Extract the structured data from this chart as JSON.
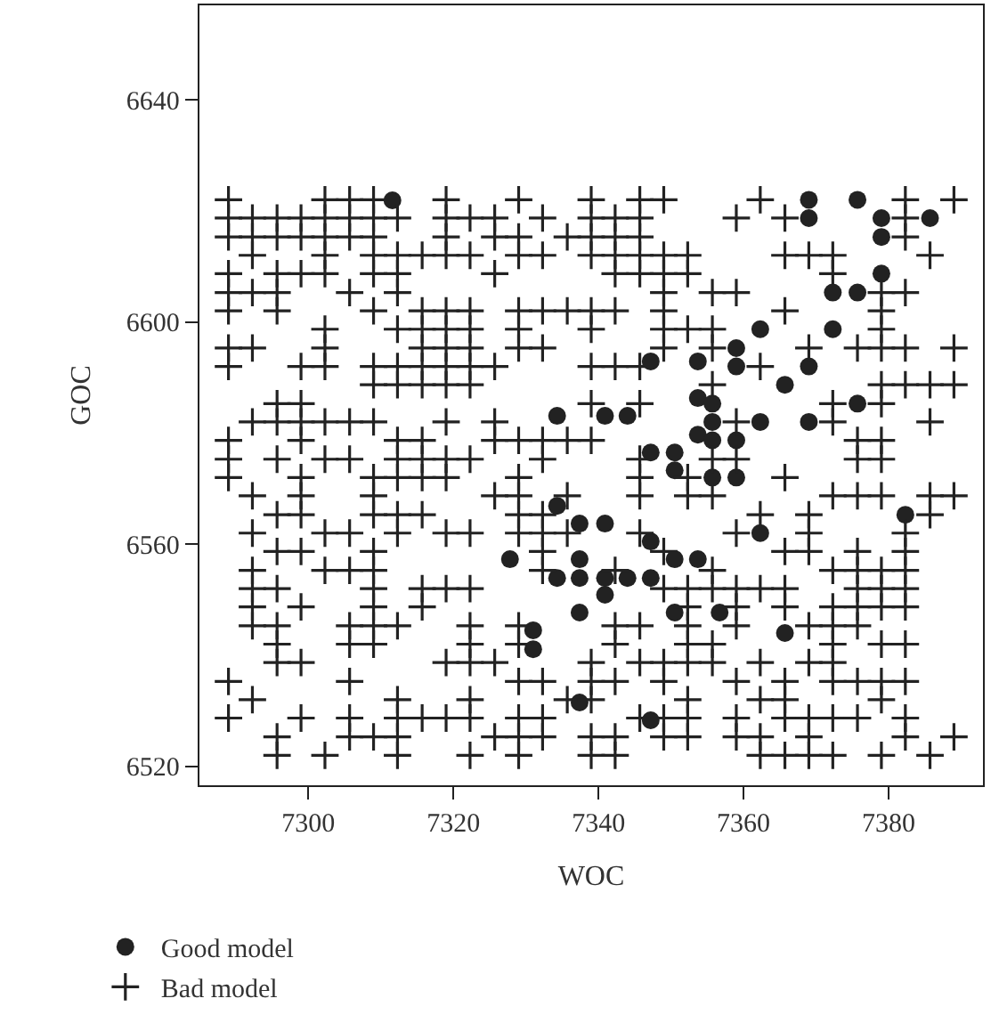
{
  "chart_data": {
    "type": "scatter",
    "xlabel": "WOC",
    "ylabel": "GOC",
    "xlim": [
      7285,
      7393
    ],
    "ylim": [
      6516.6,
      6657
    ],
    "xticks": [
      7300,
      7320,
      7340,
      7360,
      7380
    ],
    "yticks": [
      6520,
      6560,
      6600,
      6640
    ],
    "legend": "bottom left",
    "series": [
      {
        "name": "Good model",
        "color": "#222222",
        "marker": "circle",
        "x": [
          7311.6,
          7347.2,
          7353.7,
          7353.7,
          7334.3,
          7340.9,
          7344.0,
          7353.7,
          7347.2,
          7350.5,
          7350.5,
          7334.3,
          7337.4,
          7340.9,
          7347.2,
          7327.8,
          7337.4,
          7350.5,
          7353.7,
          7334.3,
          7337.4,
          7340.9,
          7344.0,
          7347.2,
          7340.9,
          7337.4,
          7350.5,
          7356.7,
          7331.0,
          7331.0,
          7337.4,
          7347.2,
          7369,
          7375.7,
          7369,
          7379,
          7385.7,
          7379,
          7379,
          7372.3,
          7375.7,
          7362.3,
          7372.3,
          7359,
          7359,
          7369,
          7365.7,
          7355.7,
          7375.7,
          7355.7,
          7362.3,
          7369,
          7355.7,
          7359,
          7355.7,
          7359,
          7382.3,
          7362.3,
          7365.7
        ],
        "values": [
          6621.9,
          6592.9,
          6592.9,
          6586.3,
          6583.1,
          6583.1,
          6583.1,
          6579.7,
          6576.5,
          6576.5,
          6573.3,
          6566.9,
          6563.7,
          6563.7,
          6560.5,
          6557.3,
          6557.3,
          6557.3,
          6557.3,
          6553.9,
          6553.9,
          6553.9,
          6553.9,
          6553.9,
          6550.9,
          6547.7,
          6547.7,
          6547.7,
          6544.5,
          6541.1,
          6531.5,
          6528.3,
          6622,
          6622,
          6618.7,
          6618.7,
          6618.7,
          6615.3,
          6608.7,
          6605.3,
          6605.3,
          6598.7,
          6598.7,
          6595.3,
          6592,
          6592,
          6588.7,
          6585.3,
          6585.3,
          6582,
          6582,
          6582,
          6578.7,
          6578.7,
          6572,
          6572,
          6565.3,
          6562,
          6544
        ]
      },
      {
        "name": "Bad model",
        "color": "#222222",
        "marker": "cross",
        "x": [
          7289,
          7302.3,
          7305.7,
          7309,
          7319,
          7329,
          7339,
          7345.7,
          7349,
          7289,
          7292.3,
          7295.7,
          7299,
          7302.3,
          7305.7,
          7309,
          7312.3,
          7319,
          7322.3,
          7325.7,
          7332.3,
          7339,
          7342.3,
          7345.7,
          7289,
          7292.3,
          7295.7,
          7299,
          7302.3,
          7305.7,
          7309,
          7319,
          7325.7,
          7329,
          7335.7,
          7339,
          7342.3,
          7345.7,
          7292.3,
          7302.3,
          7309,
          7312.3,
          7315.7,
          7319,
          7322.3,
          7329,
          7332.3,
          7339,
          7342.3,
          7345.7,
          7349,
          7352.3,
          7289,
          7295.7,
          7299,
          7302.3,
          7309,
          7312.3,
          7325.7,
          7342.3,
          7345.7,
          7349,
          7289,
          7292.3,
          7295.7,
          7305.7,
          7312.3,
          7349,
          7355.7,
          7289,
          7295.7,
          7309,
          7315.7,
          7319,
          7322.3,
          7329,
          7332.3,
          7335.7,
          7339,
          7342.3,
          7349,
          7302.3,
          7312.3,
          7315.7,
          7319,
          7322.3,
          7329,
          7339,
          7349,
          7352.3,
          7355.7,
          7289,
          7292.3,
          7302.3,
          7315.7,
          7319,
          7322.3,
          7329,
          7332.3,
          7349,
          7289,
          7299,
          7302.3,
          7309,
          7312.3,
          7315.7,
          7319,
          7322.3,
          7325.7,
          7339,
          7342.3,
          7345.7,
          7309,
          7312.3,
          7315.7,
          7319,
          7322.3,
          7295.7,
          7299,
          7339,
          7345.7,
          7292.3,
          7295.7,
          7299,
          7302.3,
          7305.7,
          7309,
          7319,
          7325.7,
          7289,
          7299,
          7312.3,
          7315.7,
          7325.7,
          7329,
          7332.3,
          7335.7,
          7339,
          7289,
          7295.7,
          7302.3,
          7305.7,
          7312.3,
          7315.7,
          7319,
          7322.3,
          7332.3,
          7345.7,
          7289,
          7299,
          7309,
          7312.3,
          7315.7,
          7319,
          7329,
          7345.7,
          7352.3,
          7292.3,
          7299,
          7309,
          7325.7,
          7329,
          7335.7,
          7345.7,
          7352.3,
          7295.7,
          7299,
          7309,
          7312.3,
          7315.7,
          7329,
          7332.3,
          7292.3,
          7302.3,
          7305.7,
          7312.3,
          7319,
          7322.3,
          7329,
          7332.3,
          7335.7,
          7345.7,
          7295.7,
          7299,
          7309,
          7332.3,
          7349,
          7292.3,
          7302.3,
          7305.7,
          7309,
          7332.3,
          7342.3,
          7355.7,
          7292.3,
          7295.7,
          7309,
          7315.7,
          7319,
          7322.3,
          7349,
          7352.3,
          7355.7,
          7292.3,
          7299,
          7309,
          7315.7,
          7352.3,
          7292.3,
          7295.7,
          7305.7,
          7309,
          7312.3,
          7322.3,
          7329,
          7342.3,
          7345.7,
          7352.3,
          7295.7,
          7305.7,
          7309,
          7322.3,
          7329,
          7342.3,
          7295.7,
          7299,
          7319,
          7322.3,
          7325.7,
          7339,
          7345.7,
          7352.3,
          7355.7,
          7289,
          7305.7,
          7329,
          7332.3,
          7339,
          7342.3,
          7349,
          7292.3,
          7312.3,
          7322.3,
          7335.7,
          7339,
          7289,
          7299,
          7305.7,
          7312.3,
          7315.7,
          7319,
          7322.3,
          7329,
          7332.3,
          7345.7,
          7352.3,
          7295.7,
          7305.7,
          7309,
          7312.3,
          7325.7,
          7329,
          7332.3,
          7339,
          7342.3,
          7349,
          7352.3,
          7295.7,
          7302.3,
          7312.3,
          7322.3,
          7329,
          7339,
          7342.3,
          7362.3,
          7382.3,
          7389,
          7359,
          7365.7,
          7382.3,
          7382.3,
          7365.7,
          7369,
          7372.3,
          7385.7,
          7352.3,
          7372.3,
          7359,
          7379,
          7382.3,
          7365.7,
          7379,
          7379,
          7355.7,
          7369,
          7375.7,
          7379,
          7382.3,
          7389,
          7362.3,
          7355.7,
          7379,
          7382.3,
          7385.7,
          7389,
          7372.3,
          7379,
          7359,
          7372.3,
          7385.7,
          7375.7,
          7379,
          7355.7,
          7359,
          7375.7,
          7379,
          7365.7,
          7372.3,
          7375.7,
          7379,
          7385.7,
          7389,
          7355.7,
          7362.3,
          7369,
          7385.7,
          7359,
          7369,
          7382.3,
          7365.7,
          7369,
          7375.7,
          7382.3,
          7372.3,
          7375.7,
          7379,
          7382.3,
          7359,
          7362.3,
          7365.7,
          7375.7,
          7379,
          7382.3,
          7359,
          7365.7,
          7372.3,
          7375.7,
          7379,
          7382.3,
          7359,
          7369,
          7372.3,
          7375.7,
          7352.3,
          7355.7,
          7372.3,
          7379,
          7382.3,
          7349,
          7362.3,
          7369,
          7372.3,
          7359,
          7365.7,
          7372.3,
          7375.7,
          7379,
          7382.3,
          7352.3,
          7362.3,
          7365.7,
          7379,
          7349,
          7359,
          7365.7,
          7369,
          7372.3,
          7375.7,
          7382.3,
          7359,
          7362.3,
          7369,
          7382.3,
          7389,
          7362.3,
          7365.7,
          7369,
          7372.3,
          7379,
          7385.7
        ],
        "values": [
          6622,
          6622,
          6622,
          6622,
          6622,
          6622,
          6622,
          6622,
          6622,
          6618.7,
          6618.7,
          6618.7,
          6618.7,
          6618.7,
          6618.7,
          6618.7,
          6618.7,
          6618.7,
          6618.7,
          6618.7,
          6618.7,
          6618.7,
          6618.7,
          6618.7,
          6615.3,
          6615.3,
          6615.3,
          6615.3,
          6615.3,
          6615.3,
          6615.3,
          6615.3,
          6615.3,
          6615.3,
          6615.3,
          6615.3,
          6615.3,
          6615.3,
          6612,
          6612,
          6612,
          6612,
          6612,
          6612,
          6612,
          6612,
          6612,
          6612,
          6612,
          6612,
          6612,
          6612,
          6608.7,
          6608.7,
          6608.7,
          6608.7,
          6608.7,
          6608.7,
          6608.7,
          6608.7,
          6608.7,
          6608.7,
          6605.3,
          6605.3,
          6605.3,
          6605.3,
          6605.3,
          6605.3,
          6605.3,
          6602,
          6602,
          6602,
          6602,
          6602,
          6602,
          6602,
          6602,
          6602,
          6602,
          6602,
          6602,
          6598.7,
          6598.7,
          6598.7,
          6598.7,
          6598.7,
          6598.7,
          6598.7,
          6598.7,
          6598.7,
          6598.7,
          6595.3,
          6595.3,
          6595.3,
          6595.3,
          6595.3,
          6595.3,
          6595.3,
          6595.3,
          6595.3,
          6592,
          6592,
          6592,
          6592,
          6592,
          6592,
          6592,
          6592,
          6592,
          6592,
          6592,
          6592,
          6588.7,
          6588.7,
          6588.7,
          6588.7,
          6588.7,
          6585.3,
          6585.3,
          6585.3,
          6585.3,
          6582,
          6582,
          6582,
          6582,
          6582,
          6582,
          6582,
          6582,
          6578.7,
          6578.7,
          6578.7,
          6578.7,
          6578.7,
          6578.7,
          6578.7,
          6578.7,
          6578.7,
          6575.3,
          6575.3,
          6575.3,
          6575.3,
          6575.3,
          6575.3,
          6575.3,
          6575.3,
          6575.3,
          6575.3,
          6572,
          6572,
          6572,
          6572,
          6572,
          6572,
          6572,
          6572,
          6572,
          6568.7,
          6568.7,
          6568.7,
          6568.7,
          6568.7,
          6568.7,
          6568.7,
          6568.7,
          6565.3,
          6565.3,
          6565.3,
          6565.3,
          6565.3,
          6565.3,
          6565.3,
          6562,
          6562,
          6562,
          6562,
          6562,
          6562,
          6562,
          6562,
          6562,
          6562,
          6558.7,
          6558.7,
          6558.7,
          6558.7,
          6558.7,
          6555.3,
          6555.3,
          6555.3,
          6555.3,
          6555.3,
          6555.3,
          6555.3,
          6552,
          6552,
          6552,
          6552,
          6552,
          6552,
          6552,
          6552,
          6552,
          6548.7,
          6548.7,
          6548.7,
          6548.7,
          6548.7,
          6545.3,
          6545.3,
          6545.3,
          6545.3,
          6545.3,
          6545.3,
          6545.3,
          6545.3,
          6545.3,
          6545.3,
          6542,
          6542,
          6542,
          6542,
          6542,
          6542,
          6538.7,
          6538.7,
          6538.7,
          6538.7,
          6538.7,
          6538.7,
          6538.7,
          6538.7,
          6538.7,
          6535.3,
          6535.3,
          6535.3,
          6535.3,
          6535.3,
          6535.3,
          6535.3,
          6532,
          6532,
          6532,
          6532,
          6532,
          6528.7,
          6528.7,
          6528.7,
          6528.7,
          6528.7,
          6528.7,
          6528.7,
          6528.7,
          6528.7,
          6528.7,
          6528.7,
          6525.3,
          6525.3,
          6525.3,
          6525.3,
          6525.3,
          6525.3,
          6525.3,
          6525.3,
          6525.3,
          6525.3,
          6525.3,
          6522,
          6522,
          6522,
          6522,
          6522,
          6522,
          6522,
          6622,
          6622,
          6622,
          6618.7,
          6618.7,
          6618.7,
          6615.3,
          6612,
          6612,
          6612,
          6612,
          6608.7,
          6608.7,
          6605.3,
          6605.3,
          6605.3,
          6602,
          6602,
          6598.7,
          6595.3,
          6595.3,
          6595.3,
          6595.3,
          6595.3,
          6595.3,
          6592,
          6588.7,
          6588.7,
          6588.7,
          6588.7,
          6588.7,
          6585.3,
          6585.3,
          6582,
          6582,
          6582,
          6578.7,
          6578.7,
          6575.3,
          6575.3,
          6575.3,
          6575.3,
          6572,
          6568.7,
          6568.7,
          6568.7,
          6568.7,
          6568.7,
          6568.7,
          6565.3,
          6565.3,
          6565.3,
          6562,
          6562,
          6562,
          6558.7,
          6558.7,
          6558.7,
          6558.7,
          6555.3,
          6555.3,
          6555.3,
          6555.3,
          6552,
          6552,
          6552,
          6552,
          6552,
          6552,
          6548.7,
          6548.7,
          6548.7,
          6548.7,
          6548.7,
          6548.7,
          6545.3,
          6545.3,
          6545.3,
          6545.3,
          6542,
          6542,
          6542,
          6542,
          6542,
          6538.7,
          6538.7,
          6538.7,
          6538.7,
          6535.3,
          6535.3,
          6535.3,
          6535.3,
          6535.3,
          6535.3,
          6532,
          6532,
          6532,
          6532,
          6528.7,
          6528.7,
          6528.7,
          6528.7,
          6528.7,
          6528.7,
          6528.7,
          6525.3,
          6525.3,
          6525.3,
          6525.3,
          6525.3,
          6522,
          6522,
          6522,
          6522,
          6522,
          6522
        ]
      }
    ]
  }
}
